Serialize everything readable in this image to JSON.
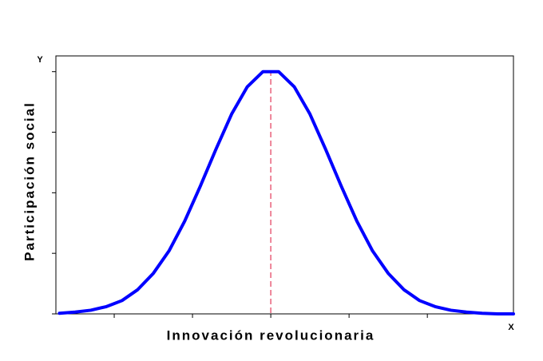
{
  "chart_data": {
    "type": "line",
    "x_axis_label": "Innovación revolucionaria",
    "y_axis_label": "Participación social",
    "x_axis_letter": "X",
    "y_axis_letter": "Y",
    "x": [
      -2.7,
      -2.5,
      -2.3,
      -2.1,
      -1.9,
      -1.7,
      -1.5,
      -1.3,
      -1.1,
      -0.9,
      -0.7,
      -0.5,
      -0.3,
      -0.1,
      0.1,
      0.3,
      0.5,
      0.7,
      0.9,
      1.1,
      1.3,
      1.5,
      1.7,
      1.9,
      2.1,
      2.3,
      2.5,
      2.7,
      2.9,
      3.1
    ],
    "series": [
      {
        "color": "#0000ff",
        "values": [
          0.01,
          0.03,
          0.06,
          0.12,
          0.22,
          0.4,
          0.67,
          1.04,
          1.53,
          2.11,
          2.72,
          3.3,
          3.75,
          4.0,
          4.0,
          3.75,
          3.3,
          2.72,
          2.11,
          1.53,
          1.04,
          0.67,
          0.4,
          0.22,
          0.12,
          0.06,
          0.03,
          0.01,
          0.0,
          0.0
        ]
      }
    ],
    "vline": {
      "x": 0,
      "color": "#e8607a"
    },
    "xlim": [
      -2.745,
      3.1
    ],
    "ylim": [
      0,
      4.26
    ],
    "xticks": [
      -2,
      -1,
      0,
      1,
      2
    ],
    "yticks": [
      0,
      1,
      2,
      3,
      4
    ]
  }
}
